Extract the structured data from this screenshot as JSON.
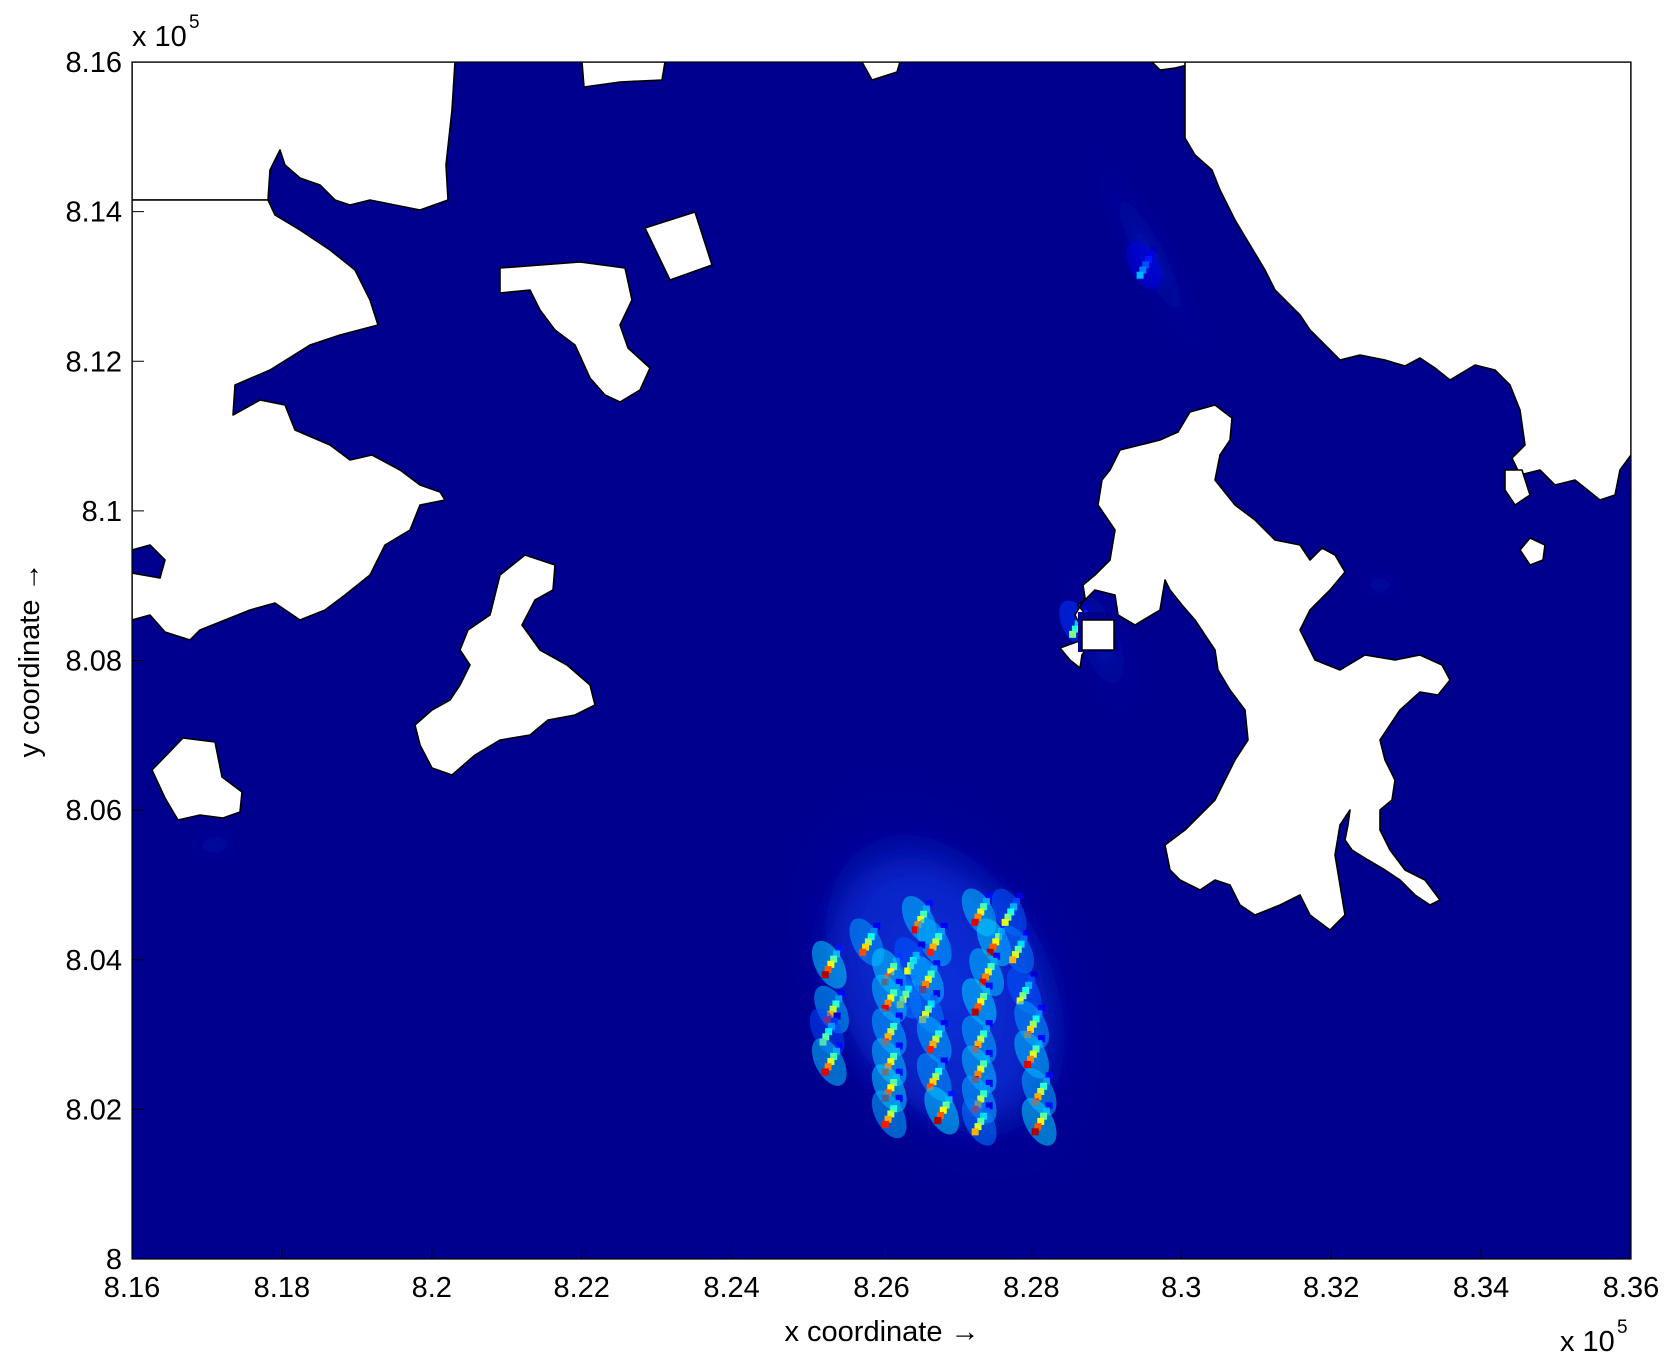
{
  "chart_data": {
    "type": "heatmap",
    "title": "",
    "xlabel": "x coordinate →",
    "ylabel": "y coordinate →",
    "x_multiplier": {
      "base": "x 10",
      "exponent": "5"
    },
    "y_multiplier": {
      "base": "x 10",
      "exponent": "5"
    },
    "xlim": [
      8.16,
      8.36
    ],
    "ylim": [
      8.0,
      8.16
    ],
    "xticks": [
      "8.16",
      "8.18",
      "8.2",
      "8.22",
      "8.24",
      "8.26",
      "8.28",
      "8.3",
      "8.32",
      "8.34",
      "8.36"
    ],
    "yticks": [
      "8",
      "8.02",
      "8.04",
      "8.06",
      "8.08",
      "8.1",
      "8.12",
      "8.14",
      "8.16"
    ],
    "grid": false,
    "colormap": "jet",
    "background_value_color": "#00008f",
    "land_color": "#ffffff",
    "hotspots": [
      {
        "x": 8.2525,
        "y": 8.038,
        "v": 0.95
      },
      {
        "x": 8.2528,
        "y": 8.032,
        "v": 0.85
      },
      {
        "x": 8.2522,
        "y": 8.029,
        "v": 0.55
      },
      {
        "x": 8.2525,
        "y": 8.025,
        "v": 0.9
      },
      {
        "x": 8.2575,
        "y": 8.041,
        "v": 0.8
      },
      {
        "x": 8.2605,
        "y": 8.037,
        "v": 0.95
      },
      {
        "x": 8.2625,
        "y": 8.034,
        "v": 0.7
      },
      {
        "x": 8.2605,
        "y": 8.0335,
        "v": 0.9
      },
      {
        "x": 8.2605,
        "y": 8.029,
        "v": 0.85
      },
      {
        "x": 8.2605,
        "y": 8.025,
        "v": 0.9
      },
      {
        "x": 8.2605,
        "y": 8.0215,
        "v": 0.95
      },
      {
        "x": 8.2605,
        "y": 8.018,
        "v": 0.85
      },
      {
        "x": 8.2645,
        "y": 8.044,
        "v": 0.9
      },
      {
        "x": 8.2665,
        "y": 8.041,
        "v": 0.85
      },
      {
        "x": 8.2635,
        "y": 8.0385,
        "v": 0.6
      },
      {
        "x": 8.2655,
        "y": 8.036,
        "v": 0.9
      },
      {
        "x": 8.2655,
        "y": 8.032,
        "v": 0.7
      },
      {
        "x": 8.2665,
        "y": 8.028,
        "v": 0.85
      },
      {
        "x": 8.2665,
        "y": 8.023,
        "v": 0.8
      },
      {
        "x": 8.2675,
        "y": 8.0185,
        "v": 0.95
      },
      {
        "x": 8.2725,
        "y": 8.045,
        "v": 0.9
      },
      {
        "x": 8.2745,
        "y": 8.041,
        "v": 0.95
      },
      {
        "x": 8.2765,
        "y": 8.045,
        "v": 0.6
      },
      {
        "x": 8.2735,
        "y": 8.037,
        "v": 0.9
      },
      {
        "x": 8.2775,
        "y": 8.04,
        "v": 0.7
      },
      {
        "x": 8.2725,
        "y": 8.033,
        "v": 0.95
      },
      {
        "x": 8.2725,
        "y": 8.028,
        "v": 0.85
      },
      {
        "x": 8.2725,
        "y": 8.024,
        "v": 0.9
      },
      {
        "x": 8.2725,
        "y": 8.02,
        "v": 0.85
      },
      {
        "x": 8.2725,
        "y": 8.017,
        "v": 0.7
      },
      {
        "x": 8.2785,
        "y": 8.0345,
        "v": 0.6
      },
      {
        "x": 8.2795,
        "y": 8.03,
        "v": 0.8
      },
      {
        "x": 8.2795,
        "y": 8.026,
        "v": 0.9
      },
      {
        "x": 8.2805,
        "y": 8.021,
        "v": 0.85
      },
      {
        "x": 8.2805,
        "y": 8.017,
        "v": 0.95
      },
      {
        "x": 8.2945,
        "y": 8.1315,
        "v": 0.3
      },
      {
        "x": 8.2855,
        "y": 8.0835,
        "v": 0.5
      }
    ]
  }
}
